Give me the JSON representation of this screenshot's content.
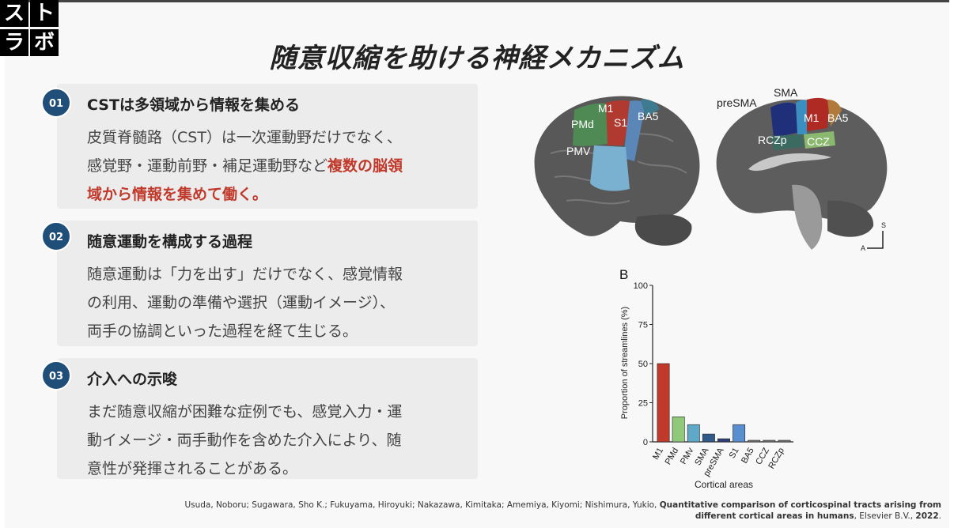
{
  "logo": {
    "chars": [
      "ス",
      "ト",
      "ラ",
      "ボ"
    ]
  },
  "title": "随意収縮を助ける神経メカニズム",
  "panels": [
    {
      "number": "01",
      "heading": "CSTは多領域から情報を集める",
      "lines": [
        "皮質脊髄路（CST）は一次運動野だけでなく、",
        "感覚野・運動前野・補足運動野など"
      ],
      "highlight_1": "複数の脳領",
      "highlight_2": "域から情報を集めて働く。"
    },
    {
      "number": "02",
      "heading": "随意運動を構成する過程",
      "lines": [
        "随意運動は「力を出す」だけでなく、感覚情報",
        "の利用、運動の準備や選択（運動イメージ）、",
        "両手の協調といった過程を経て生じる。"
      ]
    },
    {
      "number": "03",
      "heading": "介入への示唆",
      "lines": [
        "まだ随意収縮が困難な症例でも、感覚入力・運",
        "動イメージ・両手動作を含めた介入により、随",
        "意性が発揮されることがある。"
      ]
    }
  ],
  "brain_labels": {
    "lateral": [
      "M1",
      "PMd",
      "S1",
      "BA5",
      "PMV"
    ],
    "medial": [
      "preSMA",
      "SMA",
      "M1",
      "BA5",
      "RCZp",
      "CCZ"
    ],
    "axis_s": "S",
    "axis_a": "A"
  },
  "chart_data": {
    "type": "bar",
    "panel_label": "B",
    "categories": [
      "M1",
      "PMd",
      "PMv",
      "SMA",
      "preSMA",
      "S1",
      "BA5",
      "CCZ",
      "RCZp"
    ],
    "values": [
      50,
      16,
      11,
      5,
      2,
      11,
      1,
      1,
      1
    ],
    "colors": [
      "#c0392b",
      "#8fc97a",
      "#5fa8c8",
      "#2f5a8a",
      "#2f3f7a",
      "#5a8fcf",
      "#7a7a7a",
      "#7a7a7a",
      "#7a7a7a"
    ],
    "xlabel": "Cortical areas",
    "ylabel": "Proportion of streamlines (%)",
    "ylim": [
      0,
      100
    ],
    "yticks": [
      0,
      25,
      50,
      75,
      100
    ]
  },
  "citation": {
    "authors": "Usuda, Noboru; Sugawara, Sho K.; Fukuyama, Hiroyuki; Nakazawa, Kimitaka; Amemiya, Kiyomi; Nishimura, Yukio,",
    "title_part1": "Quantitative comparison of corticospinal tracts arising from",
    "title_part2": "different cortical areas in humans",
    "publisher": ", Elsevier B.V.,",
    "year": "2022",
    "end": "."
  }
}
